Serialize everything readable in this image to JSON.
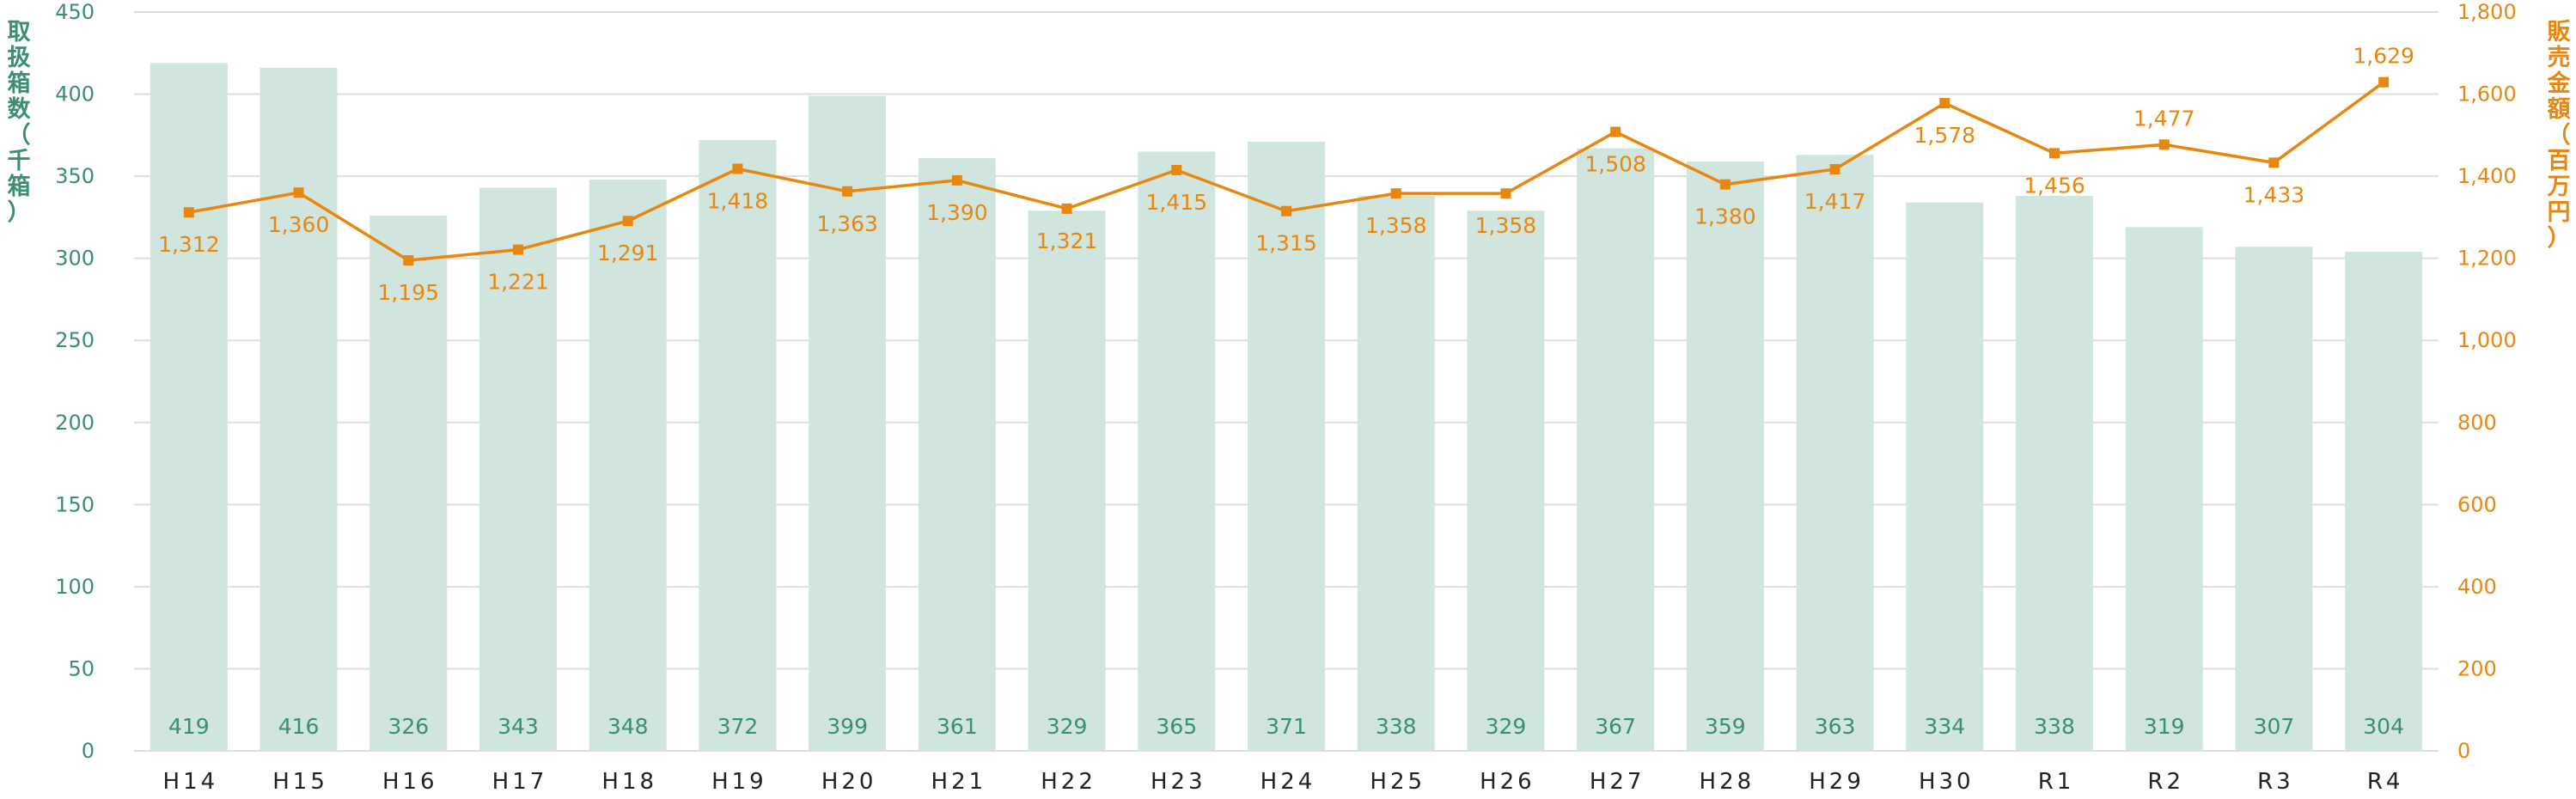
{
  "chart_data": {
    "type": "bar",
    "categories": [
      "H14",
      "H15",
      "H16",
      "H17",
      "H18",
      "H19",
      "H20",
      "H21",
      "H22",
      "H23",
      "H24",
      "H25",
      "H26",
      "H27",
      "H28",
      "H29",
      "H30",
      "R1",
      "R2",
      "R3",
      "R4"
    ],
    "series": [
      {
        "name": "取扱箱数（千箱）",
        "type": "bar",
        "axis": "left",
        "color": "#cfe5dd",
        "label_color": "#3a8f6e",
        "values": [
          419,
          416,
          326,
          343,
          348,
          372,
          399,
          361,
          329,
          365,
          371,
          338,
          329,
          367,
          359,
          363,
          334,
          338,
          319,
          307,
          304
        ]
      },
      {
        "name": "販売金額（百万円）",
        "type": "line",
        "axis": "right",
        "color": "#e8870f",
        "values": [
          1312,
          1360,
          1195,
          1221,
          1291,
          1418,
          1363,
          1390,
          1321,
          1415,
          1315,
          1358,
          1358,
          1508,
          1380,
          1417,
          1578,
          1456,
          1477,
          1433,
          1629
        ]
      }
    ],
    "y_left": {
      "label": "取扱箱数（千箱）",
      "min": 0,
      "max": 450,
      "ticks": [
        0,
        50,
        100,
        150,
        200,
        250,
        300,
        350,
        400,
        450
      ],
      "tick_labels": [
        "0",
        "50",
        "100",
        "150",
        "200",
        "250",
        "300",
        "350",
        "400",
        "450"
      ]
    },
    "y_right": {
      "label": "販売金額（百万円）",
      "min": 0,
      "max": 1800,
      "ticks": [
        0,
        200,
        400,
        600,
        800,
        1000,
        1200,
        1400,
        1600,
        1800
      ],
      "tick_labels": [
        "0",
        "200",
        "400",
        "600",
        "800",
        "1,000",
        "1,200",
        "1,400",
        "1,600",
        "1,800"
      ]
    },
    "line_labels": [
      "1,312",
      "1,360",
      "1,195",
      "1,221",
      "1,291",
      "1,418",
      "1,363",
      "1,390",
      "1,321",
      "1,415",
      "1,315",
      "1,358",
      "1,358",
      "1,508",
      "1,380",
      "1,417",
      "1,578",
      "1,456",
      "1,477",
      "1,433",
      "1,629"
    ],
    "line_label_position": [
      "below",
      "below",
      "below",
      "below",
      "below",
      "below",
      "below",
      "below",
      "below",
      "below",
      "below",
      "below",
      "below",
      "below",
      "below",
      "below",
      "below",
      "below",
      "above",
      "below",
      "above"
    ],
    "x_tick_labels": [
      "H14",
      "H15",
      "H16",
      "H17",
      "H18",
      "H19",
      "H20",
      "H21",
      "H22",
      "H23",
      "H24",
      "H25",
      "H26",
      "H27",
      "H28",
      "H29",
      "H30",
      "R1",
      "R2",
      "R3",
      "R4"
    ],
    "grid": true,
    "gridline_color": "#dddddd"
  }
}
